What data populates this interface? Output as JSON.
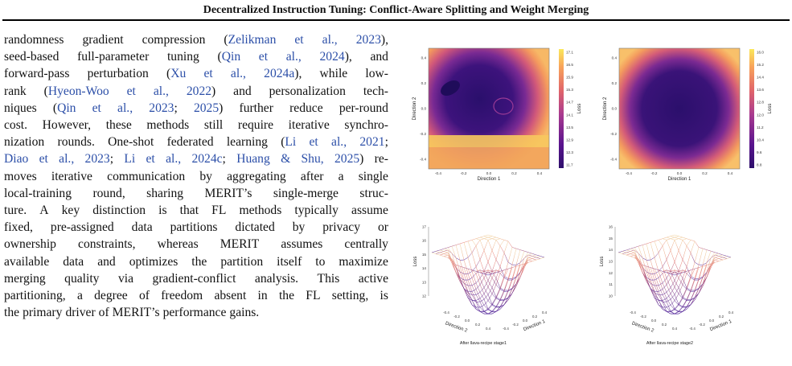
{
  "header": {
    "title": "Decentralized Instruction Tuning: Conflict-Aware Splitting and Weight Merging"
  },
  "body_lines": [
    [
      {
        "t": "randomness gradient compression ("
      },
      {
        "t": "Zelikman et al., 2023",
        "c": 1
      },
      {
        "t": "),"
      }
    ],
    [
      {
        "t": "seed-based full-parameter tuning ("
      },
      {
        "t": "Qin et al., 2024",
        "c": 1
      },
      {
        "t": "), and"
      }
    ],
    [
      {
        "t": "forward-pass perturbation ("
      },
      {
        "t": "Xu et al., 2024a",
        "c": 1
      },
      {
        "t": "), while low-"
      }
    ],
    [
      {
        "t": "rank ("
      },
      {
        "t": "Hyeon-Woo et al., 2022",
        "c": 1
      },
      {
        "t": ") and personalization tech-"
      }
    ],
    [
      {
        "t": "niques ("
      },
      {
        "t": "Qin et al., 2023",
        "c": 1
      },
      {
        "t": "; "
      },
      {
        "t": "2025",
        "c": 1
      },
      {
        "t": ") further reduce per-round"
      }
    ],
    [
      {
        "t": "cost. However, these methods still require iterative synchro-"
      }
    ],
    [
      {
        "t": "nization rounds. One-shot federated learning ("
      },
      {
        "t": "Li et al., 2021",
        "c": 1
      },
      {
        "t": ";"
      }
    ],
    [
      {
        "t": "Diao et al., 2023",
        "c": 1
      },
      {
        "t": "; "
      },
      {
        "t": "Li et al., 2024c",
        "c": 1
      },
      {
        "t": "; "
      },
      {
        "t": "Huang & Shu, 2025",
        "c": 1
      },
      {
        "t": ") re-"
      }
    ],
    [
      {
        "t": "moves iterative communication by aggregating after a single"
      }
    ],
    [
      {
        "t": "local-training round, sharing MERIT’s single-merge struc-"
      }
    ],
    [
      {
        "t": "ture. A key distinction is that FL methods typically assume"
      }
    ],
    [
      {
        "t": "fixed, pre-assigned data partitions dictated by privacy or"
      }
    ],
    [
      {
        "t": "ownership constraints, whereas MERIT assumes centrally"
      }
    ],
    [
      {
        "t": "available data and optimizes the partition itself to maximize"
      }
    ],
    [
      {
        "t": "merging quality via gradient-conflict analysis. This active"
      }
    ],
    [
      {
        "t": "partitioning, a degree of freedom absent in the FL setting, is"
      }
    ],
    [
      {
        "t": "the primary driver of MERIT’s performance gains."
      }
    ]
  ],
  "figure": {
    "contour_left": {
      "xlabel": "Direction 1",
      "ylabel": "Direction 2",
      "xticks": [
        "-0.4",
        "-0.2",
        "0.0",
        "0.2",
        "0.4"
      ],
      "yticks": [
        "0.4",
        "0.2",
        "0.0",
        "-0.2",
        "-0.4"
      ],
      "colorbar_label": "Loss",
      "colorbar_ticks": [
        "17.1",
        "16.5",
        "15.9",
        "15.3",
        "14.7",
        "14.1",
        "13.5",
        "12.9",
        "12.3",
        "11.7"
      ]
    },
    "contour_right": {
      "xlabel": "Direction 1",
      "ylabel": "Direction 2",
      "xticks": [
        "-0.4",
        "-0.2",
        "0.0",
        "0.2",
        "0.4"
      ],
      "yticks": [
        "0.4",
        "0.2",
        "0.0",
        "-0.2",
        "-0.4"
      ],
      "colorbar_label": "Loss",
      "colorbar_ticks": [
        "16.0",
        "15.2",
        "14.4",
        "13.6",
        "12.8",
        "12.0",
        "11.2",
        "10.4",
        "9.6",
        "8.8"
      ]
    },
    "surface_left": {
      "zlabel": "Loss",
      "zticks": [
        "17",
        "16",
        "15",
        "14",
        "13",
        "12"
      ],
      "dir2_ticks": [
        "-0.4",
        "-0.2",
        "0.0",
        "0.2",
        "0.4"
      ],
      "dir1_ticks": [
        "-0.4",
        "-0.2",
        "0.0",
        "0.2",
        "0.4"
      ],
      "xlabel": "Direction 2",
      "ylabel": "Direction 1",
      "caption": "After llava-recipe stage1"
    },
    "surface_right": {
      "zlabel": "Loss",
      "zticks": [
        "16",
        "15",
        "14",
        "13",
        "12",
        "11",
        "10"
      ],
      "dir2_ticks": [
        "-0.4",
        "-0.2",
        "0.0",
        "0.2",
        "0.4"
      ],
      "dir1_ticks": [
        "-0.4",
        "-0.2",
        "0.0",
        "0.2",
        "0.4"
      ],
      "xlabel": "Direction 2",
      "ylabel": "Direction 1",
      "caption": "After llava-recipe stage2"
    }
  }
}
